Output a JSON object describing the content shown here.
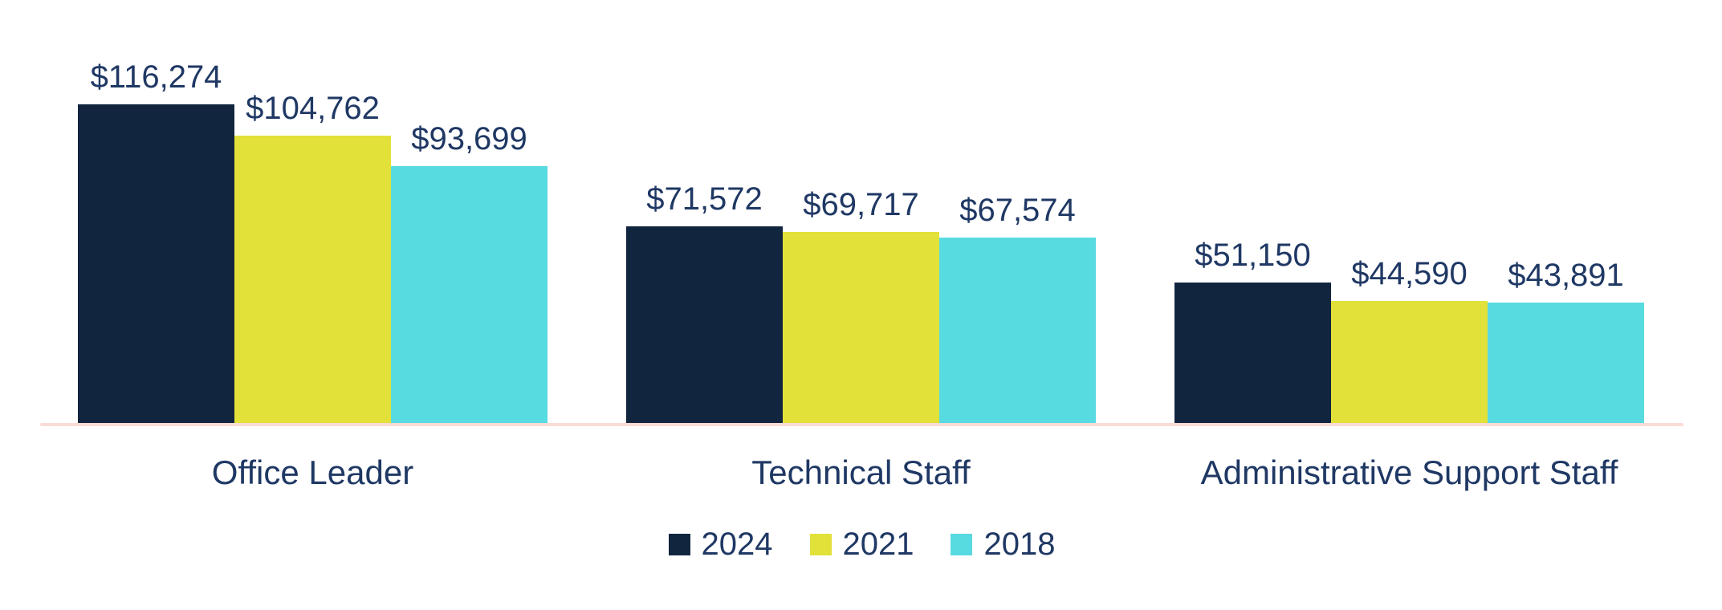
{
  "chart_data": {
    "type": "bar",
    "title": "",
    "xlabel": "",
    "ylabel": "",
    "categories": [
      "Office Leader",
      "Technical Staff",
      "Administrative Support Staff"
    ],
    "series": [
      {
        "name": "2024",
        "color": "#12253F",
        "values": [
          116274,
          71572,
          51150
        ],
        "value_labels": [
          "$116,274",
          "$71,572",
          "$51,150"
        ]
      },
      {
        "name": "2021",
        "color": "#E2E13A",
        "values": [
          104762,
          69717,
          44590
        ],
        "value_labels": [
          "$104,762",
          "$69,717",
          "$44,590"
        ]
      },
      {
        "name": "2018",
        "color": "#58DAE1",
        "values": [
          93699,
          67574,
          43891
        ],
        "value_labels": [
          "$93,699",
          "$67,574",
          "$43,891"
        ]
      }
    ],
    "ylim": [
      0,
      120000
    ],
    "grid": false,
    "legend_position": "bottom",
    "colors": {
      "label_text": "#1F3864",
      "axis_line": "#FADCD6",
      "background": "#FFFFFF"
    }
  }
}
